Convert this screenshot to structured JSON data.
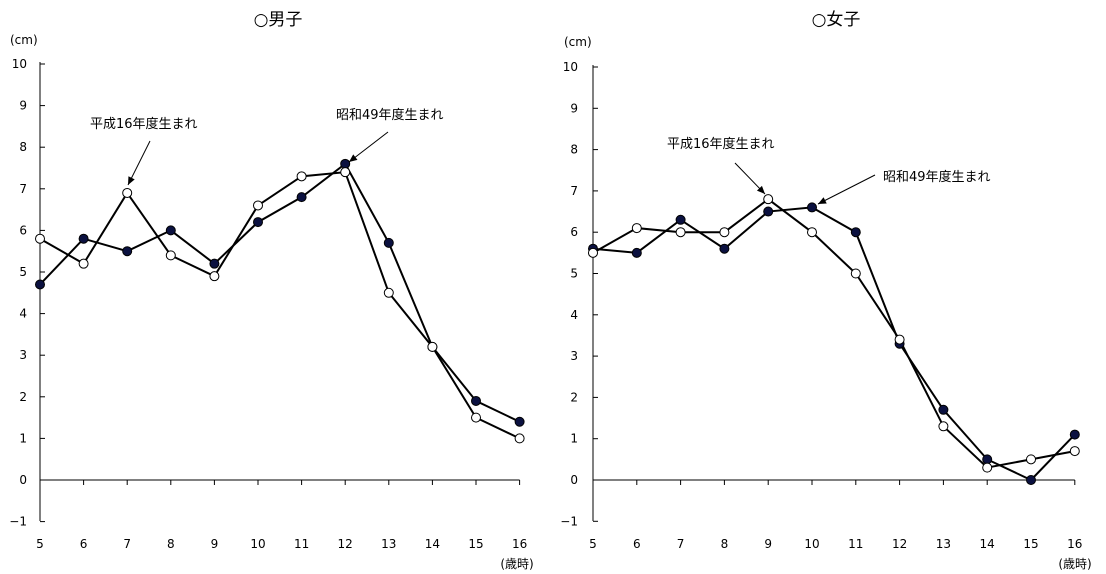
{
  "chart_data": [
    {
      "type": "line",
      "title": "○男子",
      "ylabel": "(cm)",
      "xlabel": "(歳時)",
      "ylim": [
        -1,
        10
      ],
      "yticks": [
        -1,
        0,
        1,
        2,
        3,
        4,
        5,
        6,
        7,
        8,
        9,
        10
      ],
      "categories": [
        "5",
        "6",
        "7",
        "8",
        "9",
        "10",
        "11",
        "12",
        "13",
        "14",
        "15",
        "16"
      ],
      "grid": false,
      "series": [
        {
          "name": "昭和49年度生まれ",
          "marker": "filled",
          "values": [
            4.7,
            5.8,
            5.5,
            6.0,
            5.2,
            6.2,
            6.8,
            7.6,
            5.7,
            3.2,
            1.9,
            1.4
          ]
        },
        {
          "name": "平成16年度生まれ",
          "marker": "open",
          "values": [
            5.8,
            5.2,
            6.9,
            5.4,
            4.9,
            6.6,
            7.3,
            7.4,
            4.5,
            3.2,
            1.5,
            1.0
          ]
        }
      ]
    },
    {
      "type": "line",
      "title": "○女子",
      "ylabel": "(cm)",
      "xlabel": "(歳時)",
      "ylim": [
        -1,
        10
      ],
      "yticks": [
        -1,
        0,
        1,
        2,
        3,
        4,
        5,
        6,
        7,
        8,
        9,
        10
      ],
      "categories": [
        "5",
        "6",
        "7",
        "8",
        "9",
        "10",
        "11",
        "12",
        "13",
        "14",
        "15",
        "16"
      ],
      "grid": false,
      "series": [
        {
          "name": "昭和49年度生まれ",
          "marker": "filled",
          "values": [
            5.6,
            5.5,
            6.3,
            5.6,
            6.5,
            6.6,
            6.0,
            3.3,
            1.7,
            0.5,
            0.0,
            1.1
          ]
        },
        {
          "name": "平成16年度生まれ",
          "marker": "open",
          "values": [
            5.5,
            6.1,
            6.0,
            6.0,
            6.8,
            6.0,
            5.0,
            3.4,
            1.3,
            0.3,
            0.5,
            0.7
          ]
        }
      ]
    }
  ]
}
